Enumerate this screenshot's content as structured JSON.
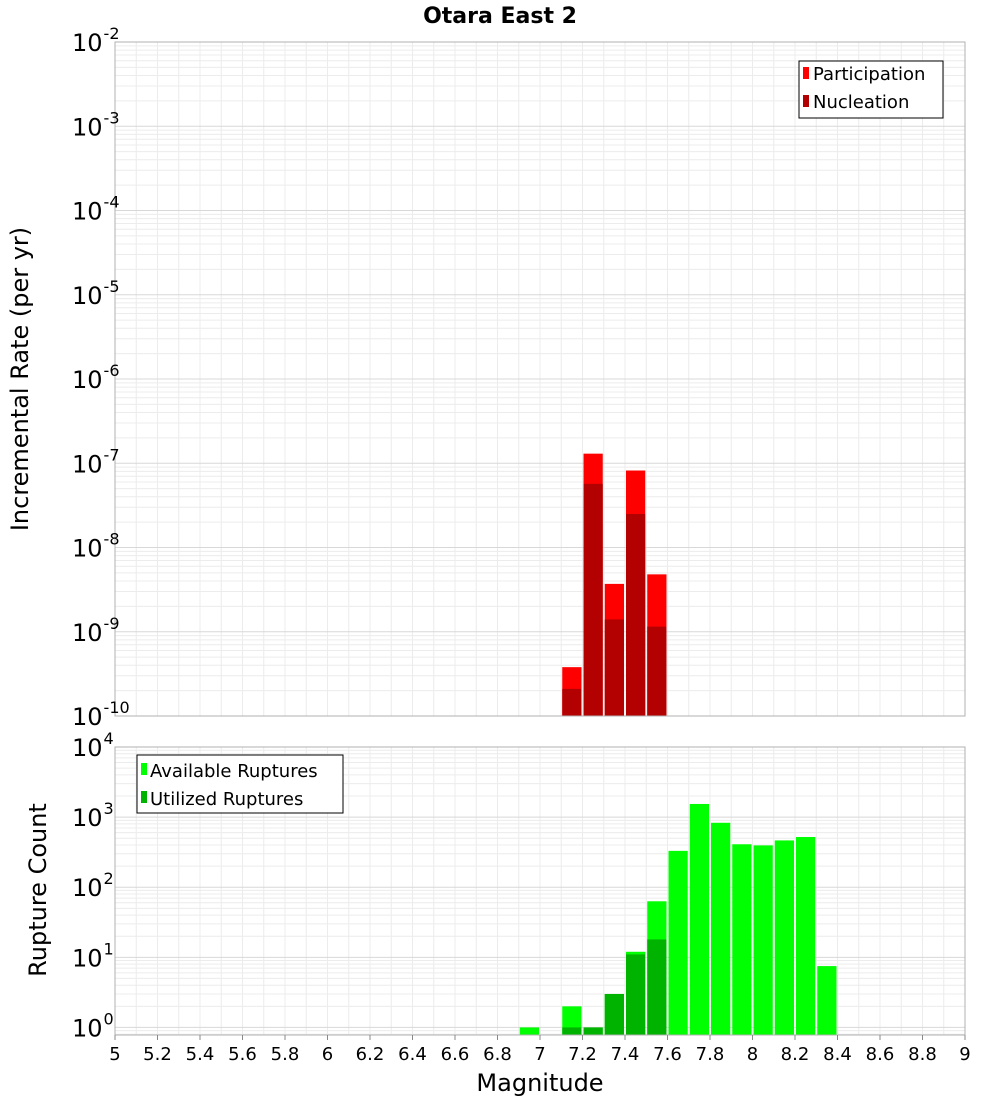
{
  "chart_data": [
    {
      "type": "bar",
      "title": "Otara East 2",
      "xlabel": "",
      "ylabel": "Incremental Rate (per yr)",
      "yscale": "log",
      "xlim": [
        5,
        9
      ],
      "ylim": [
        1e-10,
        0.01
      ],
      "yticks": [
        {
          "base": "10",
          "exp": "-10"
        },
        {
          "base": "10",
          "exp": "-9"
        },
        {
          "base": "10",
          "exp": "-8"
        },
        {
          "base": "10",
          "exp": "-7"
        },
        {
          "base": "10",
          "exp": "-6"
        },
        {
          "base": "10",
          "exp": "-5"
        },
        {
          "base": "10",
          "exp": "-4"
        },
        {
          "base": "10",
          "exp": "-3"
        },
        {
          "base": "10",
          "exp": "-2"
        }
      ],
      "bar_width": 0.1,
      "grid": true,
      "legend_position": "top-right",
      "series": [
        {
          "name": "Participation",
          "color": "#ff0000",
          "x": [
            7.15,
            7.25,
            7.35,
            7.45,
            7.55
          ],
          "values": [
            3.8e-10,
            1.3e-07,
            3.7e-09,
            8.2e-08,
            4.8e-09
          ]
        },
        {
          "name": "Nucleation",
          "color": "#b30000",
          "x": [
            7.15,
            7.25,
            7.35,
            7.45,
            7.55
          ],
          "values": [
            2.1e-10,
            5.7e-08,
            1.4e-09,
            2.5e-08,
            1.15e-09
          ]
        }
      ]
    },
    {
      "type": "bar",
      "title": "",
      "xlabel": "Magnitude",
      "ylabel": "Rupture Count",
      "yscale": "log",
      "xlim": [
        5,
        9
      ],
      "ylim": [
        0.78,
        10000.0
      ],
      "xticks": [
        "5",
        "5.2",
        "5.4",
        "5.6",
        "5.8",
        "6",
        "6.2",
        "6.4",
        "6.6",
        "6.8",
        "7",
        "7.2",
        "7.4",
        "7.6",
        "7.8",
        "8",
        "8.2",
        "8.4",
        "8.6",
        "8.8",
        "9"
      ],
      "yticks": [
        {
          "base": "10",
          "exp": "0"
        },
        {
          "base": "10",
          "exp": "1"
        },
        {
          "base": "10",
          "exp": "2"
        },
        {
          "base": "10",
          "exp": "3"
        },
        {
          "base": "10",
          "exp": "4"
        }
      ],
      "bar_width": 0.1,
      "grid": true,
      "legend_position": "top-left",
      "series": [
        {
          "name": "Available Ruptures",
          "color": "#00ff00",
          "x": [
            6.95,
            7.15,
            7.25,
            7.35,
            7.45,
            7.55,
            7.65,
            7.75,
            7.85,
            7.95,
            8.05,
            8.15,
            8.25,
            8.35
          ],
          "values": [
            1,
            2,
            1,
            3,
            12,
            63,
            330,
            1540,
            830,
            410,
            395,
            465,
            520,
            7.5
          ]
        },
        {
          "name": "Utilized Ruptures",
          "color": "#00b300",
          "x": [
            7.15,
            7.25,
            7.35,
            7.45,
            7.55
          ],
          "values": [
            1,
            1,
            3,
            11,
            18
          ]
        }
      ]
    }
  ]
}
